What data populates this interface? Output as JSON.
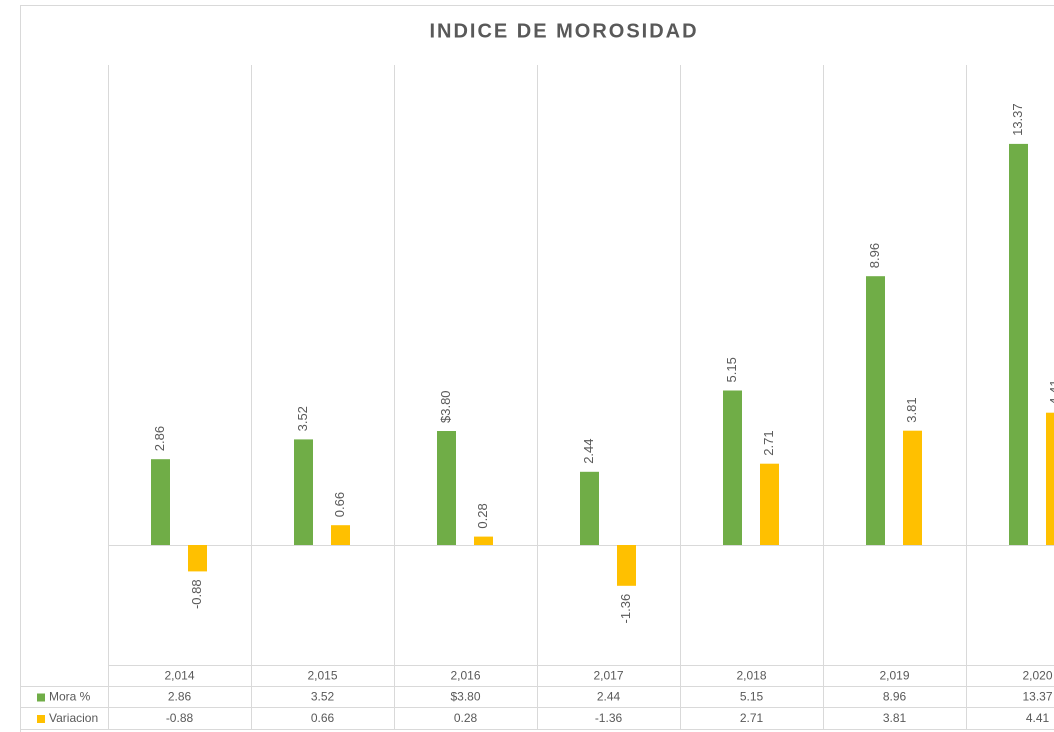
{
  "chart_data": {
    "type": "bar",
    "title": "INDICE DE MOROSIDAD",
    "categories": [
      "2,014",
      "2,015",
      "2,016",
      "2,017",
      "2,018",
      "2,019",
      "2,020"
    ],
    "series": [
      {
        "name": "Mora %",
        "color": "#70ad47",
        "values": [
          2.86,
          3.52,
          3.8,
          2.44,
          5.15,
          8.96,
          13.37
        ],
        "value_labels": [
          "2.86",
          "3.52",
          "$3.80",
          "2.44",
          "5.15",
          "8.96",
          "13.37"
        ]
      },
      {
        "name": "Variacion",
        "color": "#ffc000",
        "values": [
          -0.88,
          0.66,
          0.28,
          -1.36,
          2.71,
          3.81,
          4.41
        ],
        "value_labels": [
          "-0.88",
          "0.66",
          "0.28",
          "-1.36",
          "2.71",
          "3.81",
          "4.41"
        ]
      }
    ],
    "ylim": [
      -4,
      16
    ]
  }
}
